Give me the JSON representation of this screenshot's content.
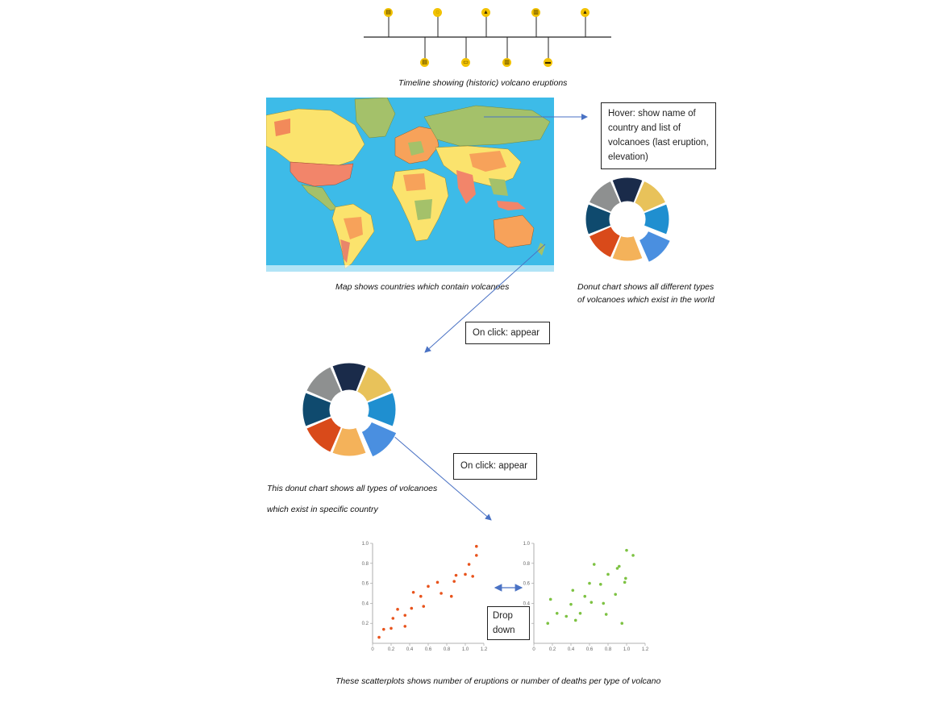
{
  "timeline": {
    "caption": "Timeline showing (historic) volcano eruptions",
    "icons_top": [
      "document-icon",
      "chat-icon",
      "volcano-icon",
      "chart-icon",
      "volcano-icon"
    ],
    "icons_bottom": [
      "document-icon",
      "truck-icon",
      "chart-icon",
      "car-icon"
    ],
    "accent": "#f2c200"
  },
  "map": {
    "caption": "Map shows countries which contain volcanoes",
    "ocean_color": "#3dbbe8"
  },
  "hover_note": {
    "text": "Hover: show name of country and list of volcanoes (last eruption, elevation)"
  },
  "donut_world": {
    "caption": "Donut chart shows all different types of volcanoes which exist in the world"
  },
  "click_note_1": {
    "text": "On click: appear"
  },
  "donut_country": {
    "caption_line1": "This donut chart shows all types of volcanoes",
    "caption_line2": "which exist in specific country",
    "segments": [
      {
        "color": "#1a2b4a"
      },
      {
        "color": "#e8c25a"
      },
      {
        "color": "#1f8fd0"
      },
      {
        "color": "#4a8fe0"
      },
      {
        "color": "#f4b25a"
      },
      {
        "color": "#d94a1a"
      },
      {
        "color": "#0f4a6e"
      },
      {
        "color": "#8e9090"
      }
    ]
  },
  "click_note_2": {
    "text": "On click: appear"
  },
  "dropdown_note": {
    "line1": "Drop",
    "line2": "down"
  },
  "chart_data": [
    {
      "type": "scatter",
      "color": "#e8531c",
      "xlim": [
        0,
        1.2
      ],
      "ylim": [
        0,
        1.0
      ],
      "x_ticks": [
        "0",
        "0.2",
        "0.4",
        "0.6",
        "0.8",
        "1.0",
        "1.2"
      ],
      "y_ticks": [
        "0.2",
        "0.4",
        "0.6",
        "0.8",
        "1.0"
      ],
      "points": [
        [
          0.07,
          0.06
        ],
        [
          0.12,
          0.14
        ],
        [
          0.2,
          0.15
        ],
        [
          0.22,
          0.25
        ],
        [
          0.27,
          0.34
        ],
        [
          0.35,
          0.17
        ],
        [
          0.35,
          0.28
        ],
        [
          0.42,
          0.35
        ],
        [
          0.44,
          0.51
        ],
        [
          0.52,
          0.47
        ],
        [
          0.55,
          0.37
        ],
        [
          0.6,
          0.57
        ],
        [
          0.7,
          0.61
        ],
        [
          0.74,
          0.5
        ],
        [
          0.85,
          0.47
        ],
        [
          0.88,
          0.62
        ],
        [
          0.9,
          0.68
        ],
        [
          1.0,
          0.69
        ],
        [
          1.04,
          0.79
        ],
        [
          1.08,
          0.67
        ],
        [
          1.12,
          0.88
        ],
        [
          1.12,
          0.97
        ]
      ]
    },
    {
      "type": "scatter",
      "color": "#7dc242",
      "xlim": [
        0,
        1.2
      ],
      "ylim": [
        0,
        1.0
      ],
      "x_ticks": [
        "0",
        "0.2",
        "0.4",
        "0.6",
        "0.8",
        "1.0",
        "1.2"
      ],
      "y_ticks": [
        "0.2",
        "0.4",
        "0.6",
        "0.8",
        "1.0"
      ],
      "points": [
        [
          0.15,
          0.2
        ],
        [
          0.18,
          0.44
        ],
        [
          0.25,
          0.3
        ],
        [
          0.35,
          0.27
        ],
        [
          0.4,
          0.39
        ],
        [
          0.42,
          0.53
        ],
        [
          0.45,
          0.23
        ],
        [
          0.5,
          0.3
        ],
        [
          0.55,
          0.47
        ],
        [
          0.6,
          0.6
        ],
        [
          0.62,
          0.41
        ],
        [
          0.65,
          0.79
        ],
        [
          0.72,
          0.59
        ],
        [
          0.75,
          0.4
        ],
        [
          0.78,
          0.29
        ],
        [
          0.8,
          0.69
        ],
        [
          0.88,
          0.49
        ],
        [
          0.9,
          0.75
        ],
        [
          0.92,
          0.77
        ],
        [
          0.95,
          0.2
        ],
        [
          0.98,
          0.61
        ],
        [
          0.99,
          0.65
        ],
        [
          1.0,
          0.93
        ],
        [
          1.07,
          0.88
        ]
      ]
    }
  ],
  "scatter_caption": "These scatterplots shows number of eruptions or number of deaths per type of volcano"
}
